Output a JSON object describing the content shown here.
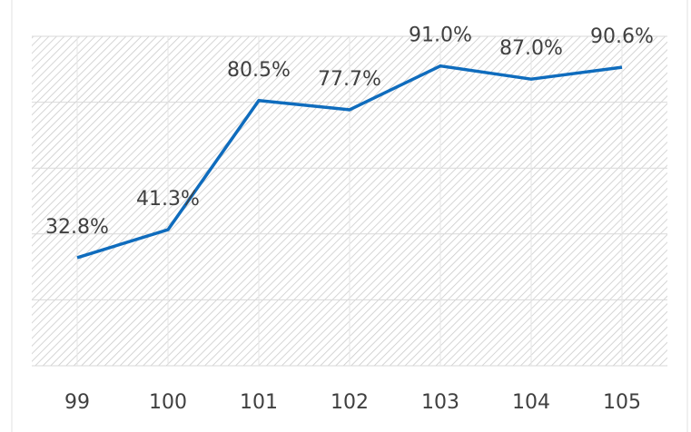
{
  "chart_data": {
    "type": "line",
    "categories": [
      "99",
      "100",
      "101",
      "102",
      "103",
      "104",
      "105"
    ],
    "series": [
      {
        "color": "#0f6cbd",
        "values": [
          32.8,
          41.3,
          80.5,
          77.7,
          91.0,
          87.0,
          90.6
        ],
        "value_labels": [
          "32.8%",
          "41.3%",
          "80.5%",
          "77.7%",
          "91.0%",
          "87.0%",
          "90.6%"
        ]
      }
    ],
    "ylim": [
      0,
      100
    ],
    "yticks": [
      0,
      20,
      40,
      60,
      80,
      100
    ],
    "grid": true
  }
}
